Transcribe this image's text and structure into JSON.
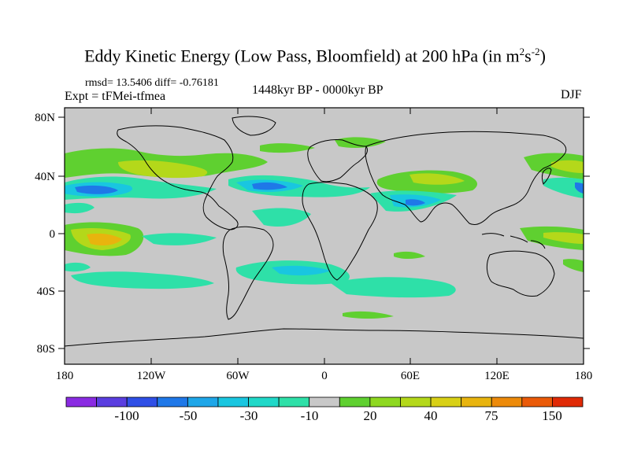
{
  "title": "Eddy Kinetic Energy (Low Pass, Bloomfield) at 200 hPa (in m",
  "title_unit_sup1": "2",
  "title_unit_s": "s",
  "title_unit_sup2": "-2",
  "title_close": ")",
  "stats": "rmsd= 13.5406 diff= -0.76181",
  "experiment": "Expt = tFMei-tfmea",
  "period": "1448kyr BP - 0000kyr BP",
  "season": "DJF",
  "lat_labels": [
    "80N",
    "40N",
    "0",
    "40S",
    "80S"
  ],
  "lon_labels": [
    "180",
    "120W",
    "60W",
    "0",
    "60E",
    "120E",
    "180"
  ],
  "colorbar": {
    "labels": [
      "-100",
      "-50",
      "-30",
      "-10",
      "20",
      "40",
      "75",
      "150"
    ],
    "colors": [
      "#8a2be2",
      "#5a3ee0",
      "#2f4fe6",
      "#1f78e8",
      "#1ea6e8",
      "#19c6e0",
      "#20d8c8",
      "#2ee0a8",
      "#c8c8c8",
      "#5fd030",
      "#8ed820",
      "#b4d81a",
      "#d8d016",
      "#e8b40e",
      "#ec8a0a",
      "#ea5a08",
      "#e02a06"
    ]
  },
  "colors": {
    "land_background": "#c8c8c8",
    "coastline": "#000000"
  }
}
